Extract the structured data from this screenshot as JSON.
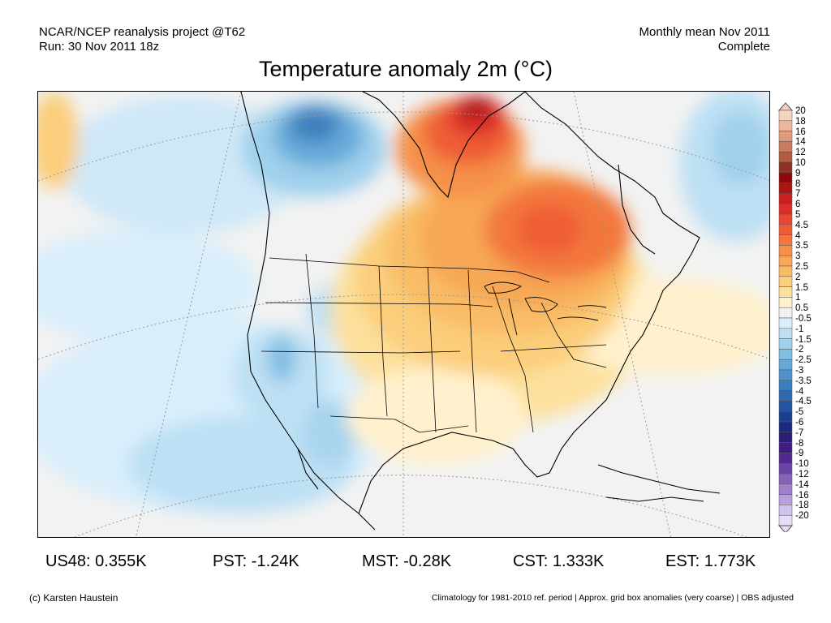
{
  "header": {
    "left_line1": "NCAR/NCEP reanalysis project @T62",
    "left_line2": "Run: 30 Nov 2011 18z",
    "right_line1": "Monthly mean Nov 2011",
    "right_line2": "Complete"
  },
  "title": "Temperature anomaly 2m (°C)",
  "colorbar": {
    "levels": [
      "20",
      "18",
      "16",
      "14",
      "12",
      "10",
      "9",
      "8",
      "7",
      "6",
      "5",
      "4.5",
      "4",
      "3.5",
      "3",
      "2.5",
      "2",
      "1.5",
      "1",
      "0.5",
      "-0.5",
      "-1",
      "-1.5",
      "-2",
      "-2.5",
      "-3",
      "-3.5",
      "-4",
      "-4.5",
      "-5",
      "-6",
      "-7",
      "-8",
      "-9",
      "-10",
      "-12",
      "-14",
      "-16",
      "-18",
      "-20"
    ],
    "colors": [
      "#f6d3c0",
      "#eeb69c",
      "#e09a7e",
      "#c97a60",
      "#b35a43",
      "#8e3325",
      "#8c0a0a",
      "#ad1414",
      "#c91f1f",
      "#dc2f2a",
      "#e8462f",
      "#ef5d36",
      "#f3773e",
      "#f59049",
      "#f7a755",
      "#f9bc66",
      "#fbce7b",
      "#fde09c",
      "#fff1cd",
      "#f2f2f2",
      "#d9eefb",
      "#bde0f4",
      "#9fd0ec",
      "#82bde3",
      "#66a9d8",
      "#4f94cb",
      "#3d7fbd",
      "#2f69ae",
      "#23549f",
      "#1b3f8f",
      "#1c2a7e",
      "#2a1f77",
      "#3d1e80",
      "#50288f",
      "#6a43a6",
      "#8462bb",
      "#9e80cd",
      "#b7a0dd",
      "#d1c2ec",
      "#e6dcf6"
    ]
  },
  "stats": [
    {
      "label": "US48: 0.355K"
    },
    {
      "label": "PST: -1.24K"
    },
    {
      "label": "MST: -0.28K"
    },
    {
      "label": "CST: 1.333K"
    },
    {
      "label": "EST: 1.773K"
    }
  ],
  "footer": {
    "left": "(c) Karsten Haustein",
    "right": "Climatology for 1981-2010 ref. period | Approx. grid box anomalies (very coarse) | OBS adjusted"
  }
}
